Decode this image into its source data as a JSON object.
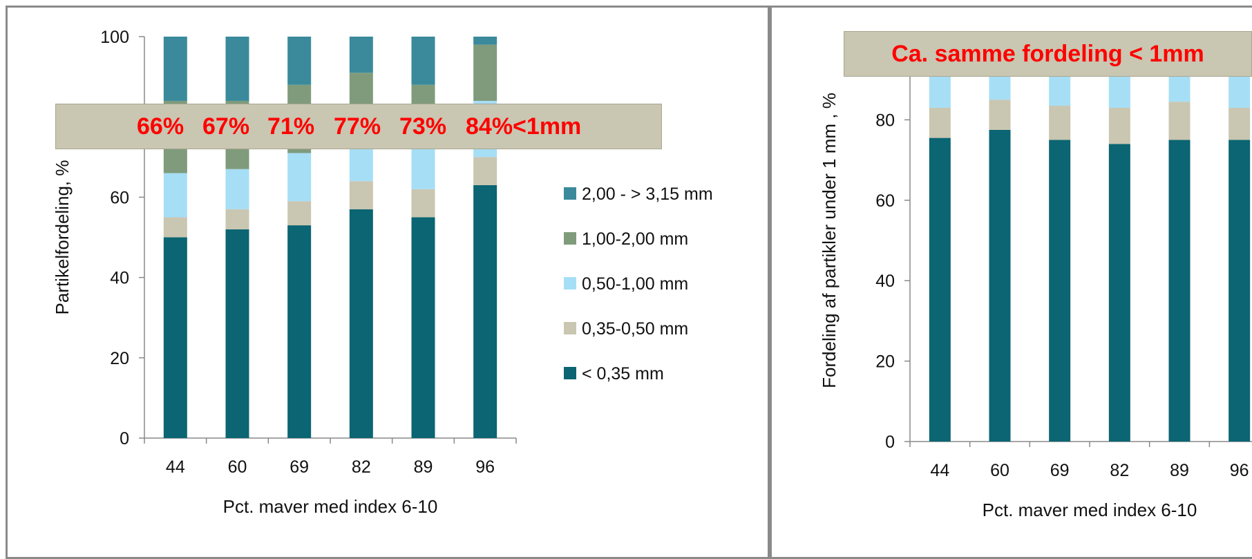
{
  "colors": {
    "lt035": "#0b6572",
    "r035_050": "#c9c6b1",
    "r050_100": "#a6def6",
    "r100_200": "#7f9b7b",
    "r200_315": "#3a8a9c",
    "banner_bg": "#c9c6b1",
    "banner_text": "#ff0000"
  },
  "left_banner": {
    "items": [
      "66%",
      "67%",
      "71%",
      "77%",
      "73%",
      "84%<1mm"
    ]
  },
  "right_banner": {
    "text": "Ca. samme fordeling < 1mm"
  },
  "chart_data": [
    {
      "type": "bar",
      "stacked": true,
      "categories": [
        "44",
        "60",
        "69",
        "82",
        "89",
        "96"
      ],
      "xlabel": "Pct. maver med index 6-10",
      "ylabel": "Partikelfordeling, %",
      "ylim": [
        0,
        100
      ],
      "yticks": [
        0,
        20,
        40,
        60,
        80,
        100
      ],
      "legend_position": "right",
      "series": [
        {
          "name": "< 0,35 mm",
          "color": "#0b6572",
          "values": [
            50,
            52,
            53,
            57,
            55,
            63
          ]
        },
        {
          "name": "0,35-0,50 mm",
          "color": "#c9c6b1",
          "values": [
            5,
            5,
            6,
            7,
            7,
            7
          ]
        },
        {
          "name": "0,50-1,00 mm",
          "color": "#a6def6",
          "values": [
            11,
            10,
            12,
            13,
            11,
            14
          ]
        },
        {
          "name": "1,00-2,00 mm",
          "color": "#7f9b7b",
          "values": [
            18,
            17,
            17,
            14,
            15,
            14
          ]
        },
        {
          "name": "2,00 - > 3,15 mm",
          "color": "#3a8a9c",
          "values": [
            16,
            16,
            12,
            9,
            12,
            2
          ]
        }
      ]
    },
    {
      "type": "bar",
      "stacked": true,
      "categories": [
        "44",
        "60",
        "69",
        "82",
        "89",
        "96"
      ],
      "xlabel": "Pct. maver med index 6-10",
      "ylabel": "Fordeling af partikler under 1 mm , %",
      "ylim": [
        0,
        100
      ],
      "yticks": [
        0,
        20,
        40,
        60,
        80,
        100
      ],
      "series": [
        {
          "name": "< 0,35 mm",
          "color": "#0b6572",
          "values": [
            75.5,
            77.5,
            75,
            74,
            75,
            75
          ]
        },
        {
          "name": "0,35-0,50 mm",
          "color": "#c9c6b1",
          "values": [
            7.5,
            7.5,
            8.5,
            9,
            9.5,
            8
          ]
        },
        {
          "name": "0,50-1,00 mm",
          "color": "#a6def6",
          "values": [
            17,
            15,
            16.5,
            17,
            15.5,
            17
          ]
        }
      ]
    }
  ]
}
